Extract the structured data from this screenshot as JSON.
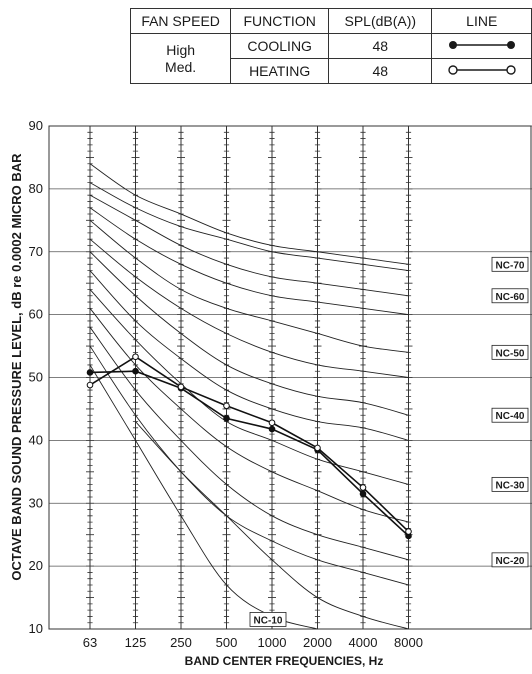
{
  "legend_table": {
    "headers": [
      "FAN SPEED",
      "FUNCTION",
      "SPL(dB(A))",
      "LINE"
    ],
    "fan_speed": "High\nMed.",
    "rows": [
      {
        "function": "COOLING",
        "spl": "48",
        "marker": "filled"
      },
      {
        "function": "HEATING",
        "spl": "48",
        "marker": "open"
      }
    ]
  },
  "chart_data": {
    "type": "line",
    "xlabel": "BAND CENTER FREQUENCIES, Hz",
    "ylabel": "OCTAVE BAND SOUND PRESSURE LEVEL, dB re 0.0002 MICRO BAR",
    "x_ticks": [
      "63",
      "125",
      "250",
      "500",
      "1000",
      "2000",
      "4000",
      "8000"
    ],
    "y_ticks": [
      10,
      20,
      30,
      40,
      50,
      60,
      70,
      80,
      90
    ],
    "ylim": [
      10,
      90
    ],
    "grid": true,
    "series": [
      {
        "name": "COOLING",
        "marker": "filled",
        "values": [
          50.8,
          51.0,
          48.3,
          43.5,
          41.8,
          38.5,
          31.5,
          24.8
        ]
      },
      {
        "name": "HEATING",
        "marker": "open",
        "values": [
          48.8,
          53.3,
          48.5,
          45.5,
          42.8,
          38.8,
          32.5,
          25.5
        ]
      }
    ],
    "nc_curves": [
      {
        "label": "",
        "values": [
          null,
          43,
          35,
          28,
          21,
          15,
          12,
          10
        ]
      },
      {
        "label": "NC-10",
        "values": [
          52,
          40,
          28,
          17,
          12,
          10,
          null,
          null
        ]
      },
      {
        "label": "",
        "values": [
          55,
          44,
          35,
          28,
          24,
          21,
          19,
          17
        ]
      },
      {
        "label": "NC-20",
        "values": [
          58,
          48,
          40,
          33,
          28,
          25,
          23,
          21
        ]
      },
      {
        "label": "",
        "values": [
          61,
          52,
          45,
          39,
          35,
          32,
          29,
          27
        ]
      },
      {
        "label": "NC-30",
        "values": [
          64,
          56,
          49,
          43,
          40,
          37,
          35,
          33
        ]
      },
      {
        "label": "",
        "values": [
          67,
          59,
          53,
          48,
          45,
          43,
          42,
          40
        ]
      },
      {
        "label": "NC-40",
        "values": [
          70,
          63,
          57,
          52,
          49,
          47,
          46,
          44
        ]
      },
      {
        "label": "",
        "values": [
          72,
          66,
          61,
          57,
          54,
          52,
          51,
          50
        ]
      },
      {
        "label": "NC-50",
        "values": [
          75,
          69,
          64,
          61,
          59,
          57,
          55,
          54
        ]
      },
      {
        "label": "",
        "values": [
          77,
          72,
          68,
          65,
          63,
          62,
          61,
          60
        ]
      },
      {
        "label": "NC-60",
        "values": [
          79,
          75,
          71,
          68,
          66,
          65,
          64,
          63
        ]
      },
      {
        "label": "",
        "values": [
          81,
          77,
          74,
          72,
          70,
          69,
          68,
          67
        ]
      },
      {
        "label": "NC-70",
        "values": [
          84,
          79,
          76,
          73,
          71,
          70,
          69,
          68
        ]
      }
    ]
  }
}
